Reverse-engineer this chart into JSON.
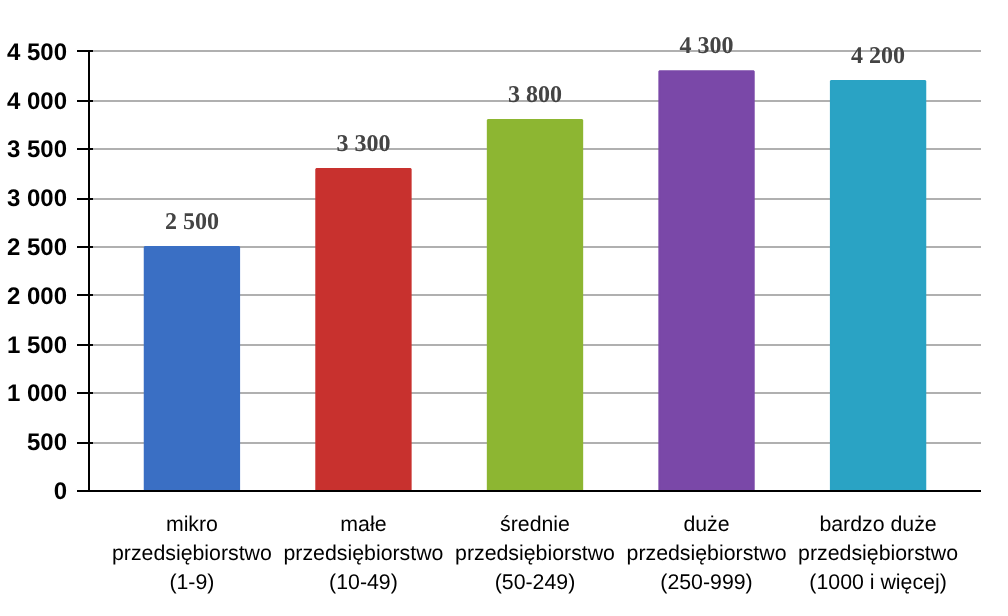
{
  "chart_data": {
    "type": "bar",
    "categories": [
      "mikro\nprzedsiębiorstwo\n(1-9)",
      "małe\nprzedsiębiorstwo\n(10-49)",
      "średnie\nprzedsiębiorstwo\n(50-249)",
      "duże\nprzedsiębiorstwo\n(250-999)",
      "bardzo duże\nprzedsiębiorstwo\n(1000 i więcej)"
    ],
    "values": [
      2500,
      3300,
      3800,
      4300,
      4200
    ],
    "colors": [
      "#3a6fc4",
      "#c8312e",
      "#8db632",
      "#7a48a8",
      "#2aa3c4"
    ],
    "value_labels": [
      "2 500",
      "3 300",
      "3 800",
      "4 300",
      "4 200"
    ],
    "ylim": [
      0,
      4500
    ],
    "yticks": [
      {
        "value": 0,
        "label": "0"
      },
      {
        "value": 500,
        "label": "500"
      },
      {
        "value": 1000,
        "label": "1 000"
      },
      {
        "value": 1500,
        "label": "1 500"
      },
      {
        "value": 2000,
        "label": "2 000"
      },
      {
        "value": 2500,
        "label": "2 500"
      },
      {
        "value": 3000,
        "label": "3 000"
      },
      {
        "value": 3500,
        "label": "3 500"
      },
      {
        "value": 4000,
        "label": "4 000"
      },
      {
        "value": 4500,
        "label": "4 500"
      }
    ],
    "grid": "y"
  }
}
